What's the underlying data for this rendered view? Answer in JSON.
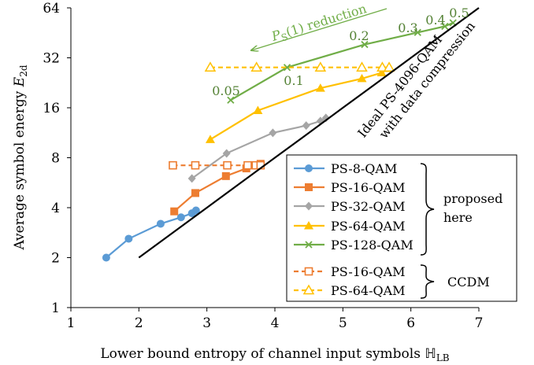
{
  "chart_data": {
    "type": "line",
    "xlabel": "Lower bound entropy of channel input symbols",
    "xlabel_symbol": "ℍ",
    "xlabel_sub": "LB",
    "ylabel": "Average symbol energy",
    "ylabel_symbol": "E",
    "ylabel_sub": "2d",
    "xlim": [
      1,
      7
    ],
    "ylim": [
      1,
      64
    ],
    "y_scale": "log2",
    "x_ticks": [
      1,
      2,
      3,
      4,
      5,
      6,
      7
    ],
    "y_ticks": [
      1,
      2,
      4,
      8,
      16,
      32,
      64
    ],
    "grid": false,
    "legend_position": "bottom-right",
    "series": [
      {
        "name": "PS-8-QAM",
        "group": "proposed",
        "color": "#5B9BD5",
        "marker": "circle",
        "dashed": false,
        "x": [
          1.52,
          1.85,
          2.32,
          2.62,
          2.78,
          2.84
        ],
        "y": [
          2.0,
          2.6,
          3.2,
          3.5,
          3.7,
          3.85
        ]
      },
      {
        "name": "PS-16-QAM",
        "group": "proposed",
        "color": "#ED7D31",
        "marker": "square",
        "dashed": false,
        "x": [
          2.52,
          2.83,
          3.28,
          3.58,
          3.72,
          3.79
        ],
        "y": [
          3.8,
          4.9,
          6.2,
          6.9,
          7.2,
          7.35
        ]
      },
      {
        "name": "PS-32-QAM",
        "group": "proposed",
        "color": "#A5A5A5",
        "marker": "diamond",
        "dashed": false,
        "x": [
          2.78,
          3.29,
          3.97,
          4.46,
          4.67,
          4.75
        ],
        "y": [
          6.0,
          8.5,
          11.3,
          12.5,
          13.3,
          13.9
        ]
      },
      {
        "name": "PS-64-QAM",
        "group": "proposed",
        "color": "#FFC000",
        "marker": "triangle",
        "dashed": false,
        "x": [
          3.05,
          3.75,
          4.67,
          5.28,
          5.57,
          5.68
        ],
        "y": [
          10.3,
          15.4,
          21.0,
          24.0,
          26.0,
          27.6
        ]
      },
      {
        "name": "PS-128-QAM",
        "group": "proposed",
        "color": "#70AD47",
        "marker": "x",
        "dashed": false,
        "x": [
          3.35,
          4.18,
          5.32,
          6.1,
          6.5,
          6.62
        ],
        "y": [
          17.8,
          28.0,
          38.5,
          45.5,
          49.5,
          52.0
        ]
      },
      {
        "name": "PS-16-QAM",
        "group": "ccdm",
        "color": "#ED7D31",
        "marker": "square-open",
        "dashed": true,
        "x": [
          2.5,
          2.83,
          3.3,
          3.6,
          3.72,
          3.79
        ],
        "y": [
          7.2,
          7.2,
          7.2,
          7.2,
          7.2,
          7.2
        ]
      },
      {
        "name": "PS-64-QAM",
        "group": "ccdm",
        "color": "#FFC000",
        "marker": "triangle-open",
        "dashed": true,
        "x": [
          3.05,
          3.73,
          4.67,
          5.28,
          5.58,
          5.68
        ],
        "y": [
          28.0,
          28.0,
          28.0,
          28.0,
          28.0,
          28.0
        ]
      },
      {
        "name": "Ideal PS-4096-QAM with data compression",
        "group": "ideal",
        "color": "#000000",
        "marker": "none",
        "dashed": false,
        "x": [
          2.0,
          2.5,
          3.0,
          3.5,
          4.0,
          4.5,
          5.0,
          5.5,
          6.0,
          6.5,
          7.0
        ],
        "y": [
          2.0,
          2.83,
          4.0,
          5.66,
          8.0,
          11.3,
          16.0,
          22.6,
          32.0,
          45.3,
          64.0
        ]
      }
    ],
    "legend_groups": [
      {
        "label_lines": [
          "proposed",
          "here"
        ]
      },
      {
        "label_lines": [
          "CCDM"
        ]
      }
    ],
    "annotations": {
      "ideal_label_lines": [
        "Ideal PS-4096-QAM",
        "with data compression"
      ],
      "reduction_symbol": "P",
      "reduction_sub": "S",
      "reduction_text": "(1) reduction",
      "prob_labels": [
        "0.05",
        "0.1",
        "0.2",
        "0.3",
        "0.4",
        "0.5"
      ]
    }
  }
}
